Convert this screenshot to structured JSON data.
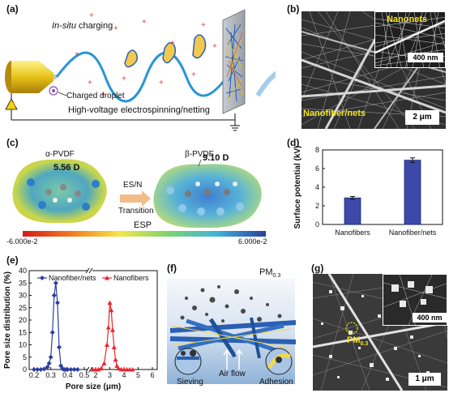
{
  "panels": {
    "a": {
      "label": "(a)",
      "in_situ": "In-situ",
      "charging": " charging",
      "droplet": "Charged droplet",
      "hv": "High-voltage electrospinning/netting"
    },
    "b": {
      "label": "(b)",
      "inset_text": "Nanonets",
      "inset_scale": "400 nm",
      "main_text": "Nanofiber/nets",
      "scale": "2 μm"
    },
    "c": {
      "label": "(c)",
      "alpha": "α-PVDF",
      "alpha_dipole": "5.56 D",
      "beta": "β-PVDF",
      "beta_dipole": "9.10 D",
      "arrow_top": "ES/N",
      "arrow_bottom": "Transition",
      "esp": "ESP",
      "esp_min": "-6.000e-2",
      "esp_max": "6.000e-2"
    },
    "d": {
      "label": "(d)"
    },
    "e": {
      "label": "(e)"
    },
    "f": {
      "label": "(f)",
      "pm": "PM",
      "pm_sub": "0.3",
      "sieving": "Sieving",
      "airflow": "Air flow",
      "adhesion": "Adhesion"
    },
    "g": {
      "label": "(g)",
      "pm": "PM",
      "pm_sub": "0.3",
      "inset_scale": "400 nm",
      "scale": "1 μm"
    }
  },
  "chart_data": [
    {
      "type": "bar",
      "panel": "d",
      "categories": [
        "Nanofibers",
        "Nanofiber/nets"
      ],
      "values": [
        2.85,
        6.9
      ],
      "errors": [
        0.15,
        0.25
      ],
      "ylabel": "Surface potential (kV)",
      "xlabel": "",
      "ylim": [
        0,
        8
      ],
      "yticks": [
        0,
        2,
        4,
        6,
        8
      ],
      "bar_color": "#3c49a8"
    },
    {
      "type": "line",
      "panel": "e",
      "xlabel": "Pore size (μm)",
      "ylabel": "Pore size distribution (%)",
      "ylim": [
        0,
        40
      ],
      "yticks": [
        0,
        5,
        10,
        15,
        20,
        25,
        30,
        35,
        40
      ],
      "xticks_left": [
        0.2,
        0.3,
        0.4,
        0.5
      ],
      "xticks_right": [
        2,
        3,
        4,
        5,
        6
      ],
      "axis_break": true,
      "series": [
        {
          "name": "Nanofiber/nets",
          "color": "#2a3fa0",
          "marker": "diamond",
          "x": [
            0.2,
            0.22,
            0.24,
            0.26,
            0.28,
            0.29,
            0.3,
            0.31,
            0.32,
            0.33,
            0.34,
            0.35,
            0.36,
            0.37,
            0.38,
            0.39,
            0.4,
            0.42,
            0.44,
            0.46
          ],
          "y": [
            0,
            0,
            0,
            0.2,
            1.0,
            2.5,
            5.0,
            15.0,
            30.0,
            35.0,
            27.0,
            9.0,
            1.5,
            0.3,
            0,
            0,
            0,
            0,
            0,
            0
          ]
        },
        {
          "name": "Nanofibers",
          "color": "#e8272e",
          "marker": "triangle",
          "x": [
            1.8,
            2.0,
            2.2,
            2.4,
            2.6,
            2.8,
            2.9,
            3.0,
            3.1,
            3.2,
            3.3,
            3.4,
            3.5,
            3.6,
            3.8,
            4.0,
            4.2,
            4.4,
            4.6
          ],
          "y": [
            0,
            0,
            0.1,
            0.5,
            2.5,
            10.0,
            17.0,
            27.0,
            24.0,
            16.0,
            9.0,
            4.0,
            1.5,
            0.5,
            0.1,
            0,
            0,
            0,
            0
          ]
        }
      ]
    }
  ]
}
